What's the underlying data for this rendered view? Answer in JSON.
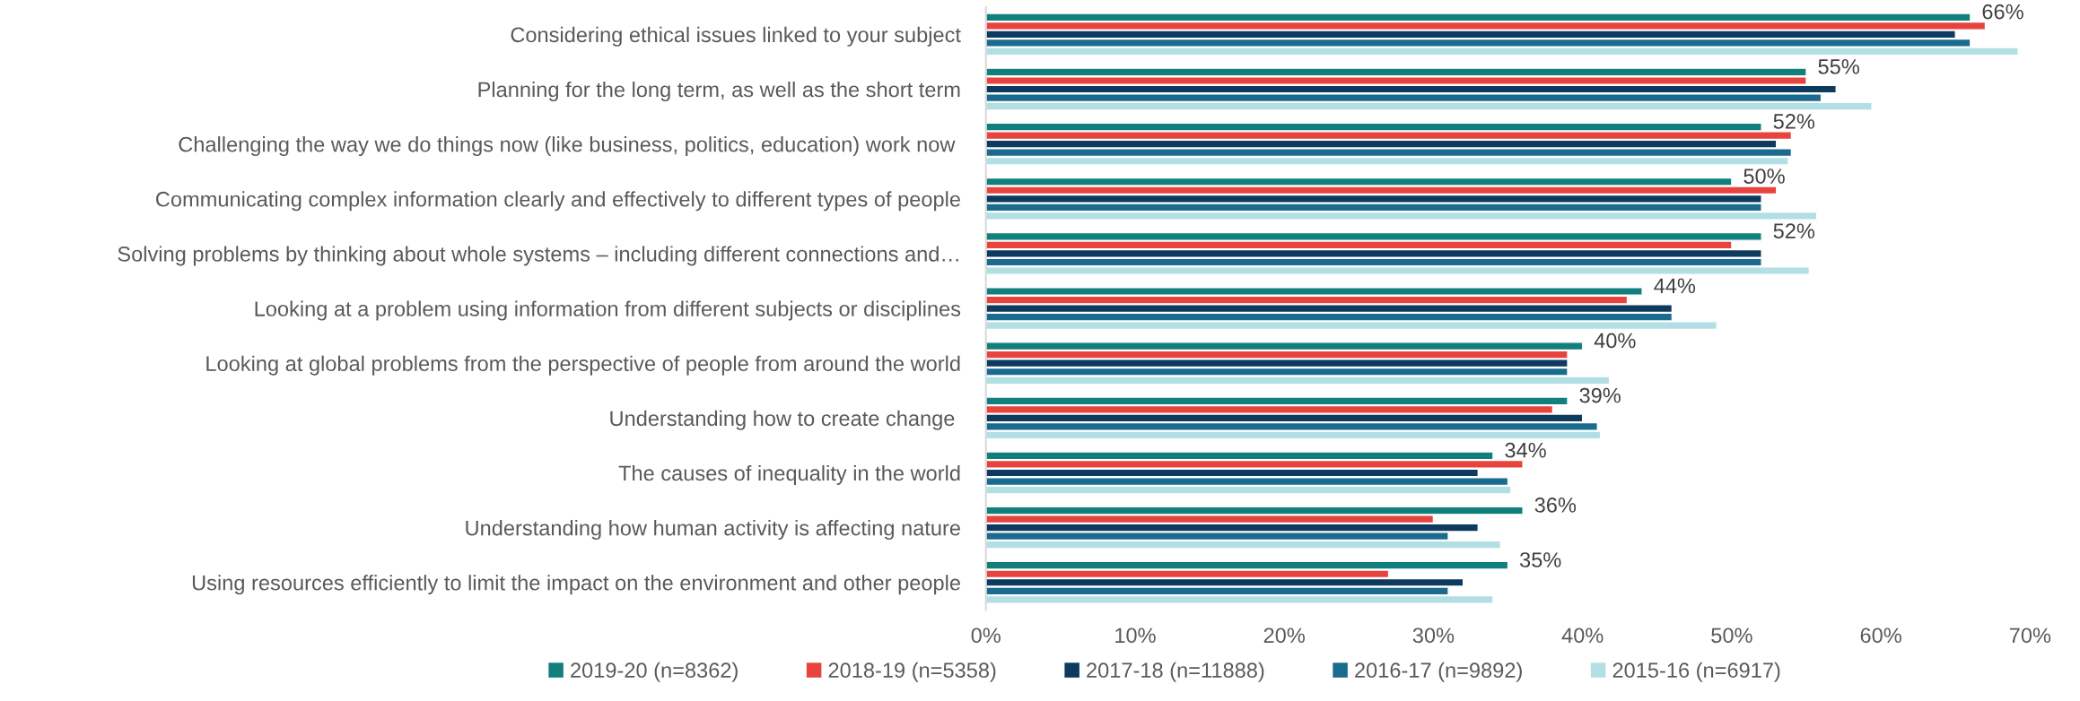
{
  "chart_data": {
    "type": "bar",
    "orientation": "horizontal",
    "categories": [
      "Considering ethical issues linked to your subject",
      "Planning for the long term, as well as the short term",
      "Challenging the way we do things now (like business, politics, education) work now ",
      "Communicating complex information clearly and effectively to different types of people",
      "Solving problems by thinking about whole systems – including different connections and…",
      "Looking at a problem using information from different subjects or disciplines",
      "Looking at global problems from the perspective of people from around the world",
      "Understanding how to create change ",
      "The causes of inequality in the world",
      "Understanding how human activity is affecting nature",
      "Using resources efficiently to limit the impact on the environment and other people"
    ],
    "series": [
      {
        "name": "2019-20 (n=8362)",
        "color": "#117f7c",
        "values": [
          66,
          55,
          52,
          50,
          52,
          44,
          40,
          39,
          34,
          36,
          35
        ],
        "value_labels": [
          "66%",
          "55%",
          "52%",
          "50%",
          "52%",
          "44%",
          "40%",
          "39%",
          "34%",
          "36%",
          "35%"
        ]
      },
      {
        "name": "2018-19 (n=5358)",
        "color": "#e8443f",
        "values": [
          67,
          55,
          54,
          53,
          50,
          43,
          39,
          38,
          36,
          30,
          27
        ]
      },
      {
        "name": "2017-18 (n=11888)",
        "color": "#0d3a5e",
        "values": [
          65,
          57,
          53,
          52,
          52,
          46,
          39,
          40,
          33,
          33,
          32
        ]
      },
      {
        "name": "2016-17 (n=9892)",
        "color": "#1b6b8e",
        "values": [
          66,
          56,
          54,
          52,
          52,
          46,
          39,
          41,
          35,
          31,
          31
        ]
      },
      {
        "name": "2015-16 (n=6917)",
        "color": "#b2dfe4",
        "values": [
          69.2,
          59.4,
          53.8,
          55.7,
          55.2,
          49,
          41.8,
          41.2,
          35.2,
          34.5,
          34
        ]
      }
    ],
    "xlim": [
      0,
      70
    ],
    "xticks": [
      {
        "value": 0,
        "label": "0%"
      },
      {
        "value": 10,
        "label": "10%"
      },
      {
        "value": 20,
        "label": "20%"
      },
      {
        "value": 30,
        "label": "30%"
      },
      {
        "value": 40,
        "label": "40%"
      },
      {
        "value": 50,
        "label": "50%"
      },
      {
        "value": 60,
        "label": "60%"
      },
      {
        "value": 70,
        "label": "70%"
      }
    ],
    "grid": false,
    "legend": "bottom"
  }
}
